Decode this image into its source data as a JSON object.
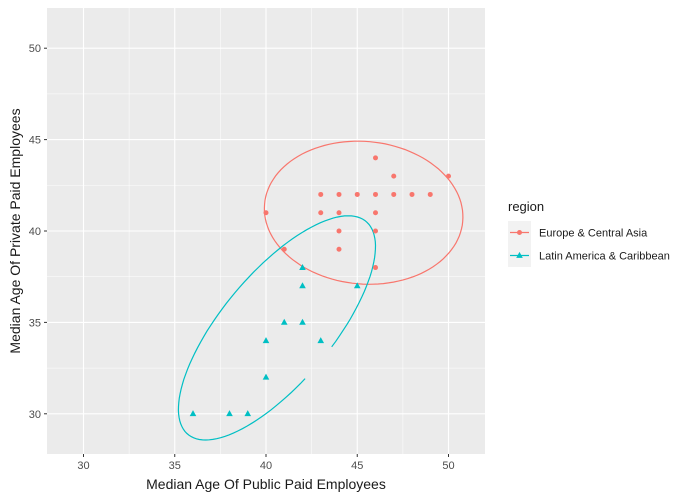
{
  "chart_data": {
    "type": "scatter",
    "xlabel": "Median Age Of Public Paid Employees",
    "ylabel": "Median Age Of Private Paid Employees",
    "xlim": [
      28,
      52
    ],
    "ylim": [
      27.8,
      52.2
    ],
    "x_ticks": [
      30,
      35,
      40,
      45,
      50
    ],
    "y_ticks": [
      30,
      35,
      40,
      45,
      50
    ],
    "grid": true,
    "legend_position": "right",
    "legend_title": "region",
    "series": [
      {
        "name": "Europe & Central Asia",
        "color": "#F8766D",
        "marker": "circle",
        "points": [
          [
            40,
            41
          ],
          [
            41,
            39
          ],
          [
            43,
            42
          ],
          [
            43,
            41
          ],
          [
            44,
            42
          ],
          [
            44,
            41
          ],
          [
            44,
            40
          ],
          [
            44,
            39
          ],
          [
            45,
            42
          ],
          [
            46,
            44
          ],
          [
            46,
            42
          ],
          [
            46,
            41
          ],
          [
            46,
            40
          ],
          [
            46,
            38
          ],
          [
            47,
            43
          ],
          [
            47,
            42
          ],
          [
            48,
            42
          ],
          [
            49,
            42
          ],
          [
            50,
            43
          ]
        ],
        "ellipse": {
          "center": [
            45.35,
            41.0
          ],
          "semi_x": 5.45,
          "semi_y": 3.9,
          "rotation_deg": -5
        }
      },
      {
        "name": "Latin America & Caribbean",
        "color": "#00BFC4",
        "marker": "triangle",
        "points": [
          [
            36,
            30
          ],
          [
            38,
            30
          ],
          [
            39,
            30
          ],
          [
            40,
            34
          ],
          [
            40,
            32
          ],
          [
            41,
            35
          ],
          [
            42,
            38
          ],
          [
            42,
            37
          ],
          [
            42,
            35
          ],
          [
            43,
            34
          ],
          [
            45,
            37
          ]
        ],
        "ellipse": {
          "center": [
            40.6,
            34.7
          ],
          "semi_x": 3.0,
          "semi_y": 7.6,
          "rotation_deg": -40,
          "open": true
        }
      }
    ]
  }
}
